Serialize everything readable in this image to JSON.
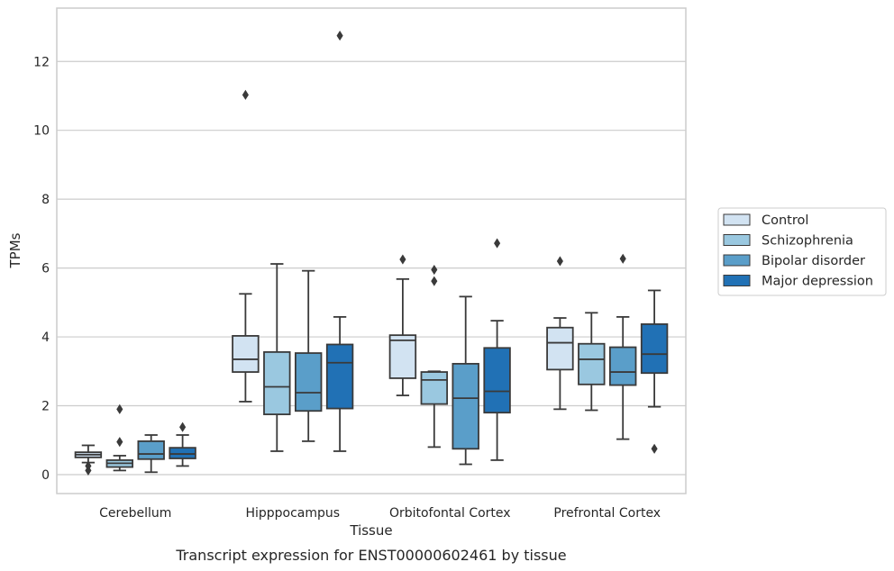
{
  "chart_data": {
    "type": "box",
    "title": "Transcript expression for ENST00000602461 by tissue",
    "xlabel": "Tissue",
    "ylabel": "TPMs",
    "ylim": [
      -0.55,
      13.55
    ],
    "yticks": [
      0,
      2,
      4,
      6,
      8,
      10,
      12
    ],
    "grid": "horizontal",
    "legend_position": "right",
    "categories": [
      "Cerebellum",
      "Hipppocampus",
      "Orbitofontal Cortex",
      "Prefrontal Cortex"
    ],
    "series": [
      {
        "name": "Control",
        "color": "#d2e3f2",
        "boxes": [
          {
            "whislo": 0.35,
            "q1": 0.5,
            "med": 0.58,
            "q3": 0.65,
            "whishi": 0.85,
            "fliers": [
              0.25,
              0.12
            ]
          },
          {
            "whislo": 2.12,
            "q1": 2.98,
            "med": 3.35,
            "q3": 4.03,
            "whishi": 5.25,
            "fliers": [
              11.03
            ]
          },
          {
            "whislo": 2.3,
            "q1": 2.8,
            "med": 3.9,
            "q3": 4.05,
            "whishi": 5.68,
            "fliers": [
              6.25
            ]
          },
          {
            "whislo": 1.9,
            "q1": 3.05,
            "med": 3.83,
            "q3": 4.27,
            "whishi": 4.55,
            "fliers": [
              6.2
            ]
          }
        ]
      },
      {
        "name": "Schizophrenia",
        "color": "#9ac8e0",
        "boxes": [
          {
            "whislo": 0.12,
            "q1": 0.22,
            "med": 0.33,
            "q3": 0.42,
            "whishi": 0.55,
            "fliers": [
              0.95,
              1.9
            ]
          },
          {
            "whislo": 0.68,
            "q1": 1.75,
            "med": 2.55,
            "q3": 3.56,
            "whishi": 6.12,
            "fliers": []
          },
          {
            "whislo": 0.8,
            "q1": 2.05,
            "med": 2.75,
            "q3": 2.98,
            "whishi": 3.0,
            "fliers": [
              5.95,
              5.62
            ]
          },
          {
            "whislo": 1.87,
            "q1": 2.62,
            "med": 3.35,
            "q3": 3.8,
            "whishi": 4.7,
            "fliers": []
          }
        ]
      },
      {
        "name": "Bipolar disorder",
        "color": "#5a9ec9",
        "boxes": [
          {
            "whislo": 0.07,
            "q1": 0.45,
            "med": 0.6,
            "q3": 0.97,
            "whishi": 1.15,
            "fliers": []
          },
          {
            "whislo": 0.97,
            "q1": 1.85,
            "med": 2.38,
            "q3": 3.53,
            "whishi": 5.92,
            "fliers": []
          },
          {
            "whislo": 0.3,
            "q1": 0.75,
            "med": 2.22,
            "q3": 3.22,
            "whishi": 5.17,
            "fliers": []
          },
          {
            "whislo": 1.03,
            "q1": 2.6,
            "med": 2.98,
            "q3": 3.7,
            "whishi": 4.58,
            "fliers": [
              6.27
            ]
          }
        ]
      },
      {
        "name": "Major depression",
        "color": "#2171b5",
        "boxes": [
          {
            "whislo": 0.25,
            "q1": 0.47,
            "med": 0.6,
            "q3": 0.78,
            "whishi": 1.15,
            "fliers": [
              1.38
            ]
          },
          {
            "whislo": 0.68,
            "q1": 1.92,
            "med": 3.25,
            "q3": 3.78,
            "whishi": 4.58,
            "fliers": [
              12.75
            ]
          },
          {
            "whislo": 0.42,
            "q1": 1.8,
            "med": 2.42,
            "q3": 3.68,
            "whishi": 4.47,
            "fliers": [
              6.72
            ]
          },
          {
            "whislo": 1.97,
            "q1": 2.95,
            "med": 3.5,
            "q3": 4.37,
            "whishi": 5.35,
            "fliers": [
              0.75
            ]
          }
        ]
      }
    ]
  },
  "colors": {
    "box_edge": "#3a3a3a",
    "grid": "#cccccc",
    "frame": "#cccccc",
    "text": "#262626"
  }
}
